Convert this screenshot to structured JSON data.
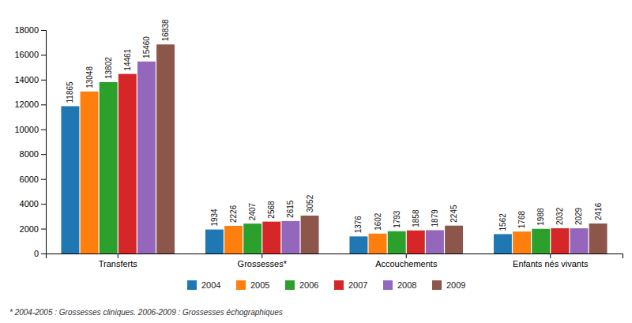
{
  "chart_data": {
    "type": "bar",
    "categories": [
      "Transferts",
      "Grossesses*",
      "Accouchements",
      "Enfants nés vivants"
    ],
    "series": [
      {
        "name": "2004",
        "values": [
          11865,
          1934,
          1376,
          1562
        ]
      },
      {
        "name": "2005",
        "values": [
          13048,
          2226,
          1602,
          1768
        ]
      },
      {
        "name": "2006",
        "values": [
          13802,
          2407,
          1793,
          1988
        ]
      },
      {
        "name": "2007",
        "values": [
          14461,
          2568,
          1858,
          2032
        ]
      },
      {
        "name": "2008",
        "values": [
          15460,
          2615,
          1879,
          2029
        ]
      },
      {
        "name": "2009",
        "values": [
          16838,
          3052,
          2245,
          2416
        ]
      }
    ],
    "ylim": [
      0,
      18000
    ],
    "yticks": [
      0,
      2000,
      4000,
      6000,
      8000,
      10000,
      12000,
      14000,
      16000,
      18000
    ],
    "annotations": [
      "* 2004-2005 : Grossesses cliniques. 2006-2009 : Grossesses échographiques"
    ],
    "data_labels": true,
    "grid": false,
    "legend": "bottom"
  }
}
